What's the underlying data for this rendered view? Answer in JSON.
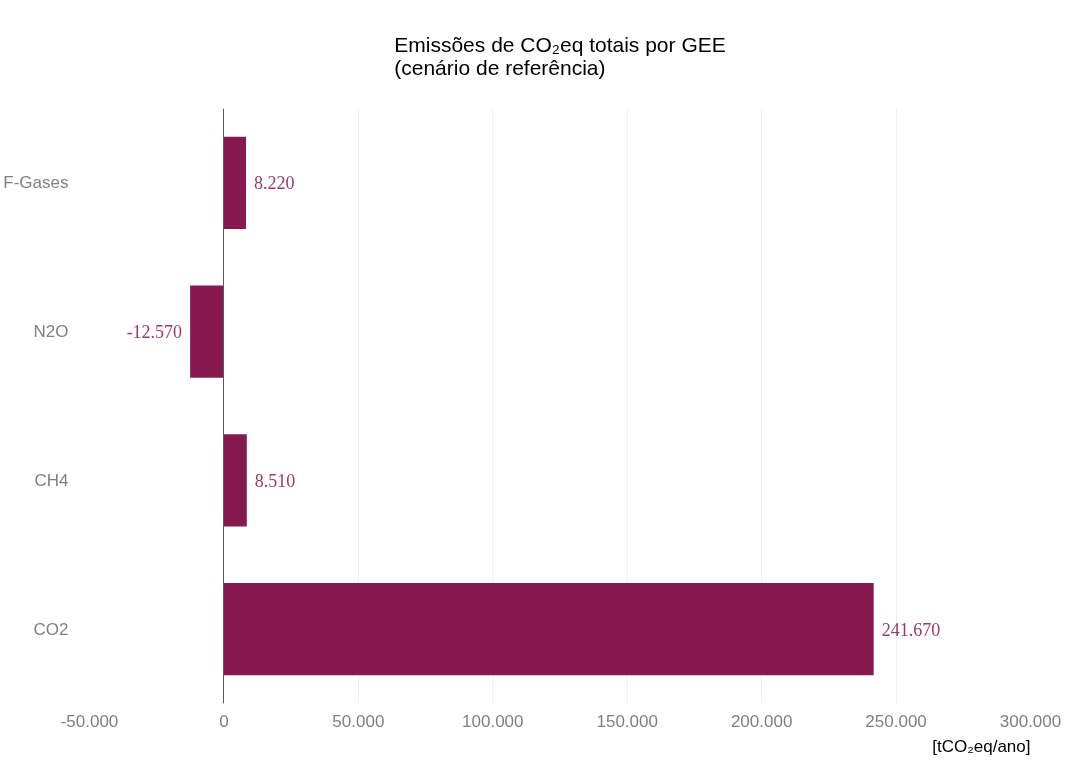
{
  "chart_data": {
    "type": "bar",
    "orientation": "horizontal",
    "title": "Emissões de CO₂eq totais por GEE\n(cenário de referência)",
    "xlabel": "[tCO₂eq/ano]",
    "categories": [
      "F-Gases",
      "N2O",
      "CH4",
      "CO2"
    ],
    "values": [
      8220,
      -12570,
      8510,
      241670
    ],
    "value_labels": [
      "8.220",
      "-12.570",
      "8.510",
      "241.670"
    ],
    "color": "#861a50",
    "xlim": [
      -50000,
      300000
    ],
    "xticks": [
      {
        "value": -50000,
        "label": "-50.000"
      },
      0,
      {
        "value": 50000,
        "label": "50.000"
      },
      {
        "value": 100000,
        "label": "100.000"
      },
      {
        "value": 150000,
        "label": "150.000"
      },
      {
        "value": 200000,
        "label": "200.000"
      },
      {
        "value": 250000,
        "label": "250.000"
      },
      {
        "value": 300000,
        "label": "300.000"
      }
    ],
    "grid": "x"
  }
}
